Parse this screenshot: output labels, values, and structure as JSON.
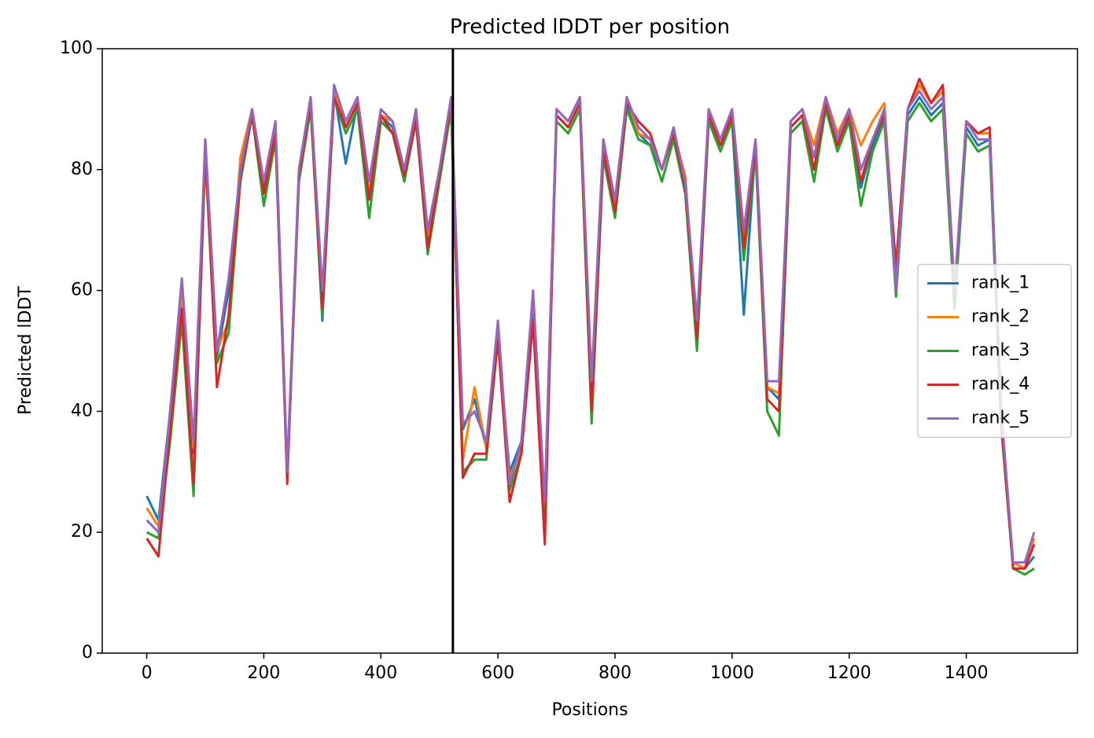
{
  "chart_data": {
    "type": "line",
    "title": "Predicted lDDT per position",
    "xlabel": "Positions",
    "ylabel": "Predicted lDDT",
    "x": [
      0,
      20,
      40,
      60,
      80,
      100,
      120,
      140,
      160,
      180,
      200,
      220,
      240,
      260,
      280,
      300,
      320,
      340,
      360,
      380,
      400,
      420,
      440,
      460,
      480,
      500,
      520,
      540,
      560,
      580,
      600,
      620,
      640,
      660,
      680,
      700,
      720,
      740,
      760,
      780,
      800,
      820,
      840,
      860,
      880,
      900,
      920,
      940,
      960,
      980,
      1000,
      1020,
      1040,
      1060,
      1080,
      1100,
      1120,
      1140,
      1160,
      1180,
      1200,
      1220,
      1240,
      1260,
      1280,
      1300,
      1320,
      1340,
      1360,
      1380,
      1400,
      1420,
      1440,
      1460,
      1480,
      1500,
      1516
    ],
    "series": [
      {
        "name": "rank_1",
        "color": "#1f77b4",
        "values": [
          26,
          22,
          40,
          60,
          33,
          84,
          49,
          60,
          80,
          89,
          77,
          87,
          30,
          79,
          91,
          55,
          93,
          81,
          91,
          78,
          89,
          87,
          80,
          89,
          68,
          79,
          90,
          37,
          42,
          34,
          52,
          30,
          35,
          58,
          24,
          89,
          87,
          91,
          44,
          84,
          74,
          91,
          86,
          84,
          80,
          86,
          77,
          54,
          89,
          84,
          88,
          56,
          84,
          44,
          42,
          87,
          89,
          80,
          91,
          84,
          89,
          77,
          84,
          89,
          61,
          89,
          92,
          89,
          91,
          58,
          87,
          84,
          85,
          38,
          15,
          14,
          16
        ]
      },
      {
        "name": "rank_2",
        "color": "#ff7f0e",
        "values": [
          24,
          21,
          38,
          60,
          34,
          85,
          50,
          55,
          82,
          90,
          78,
          87,
          30,
          80,
          92,
          58,
          93,
          87,
          91,
          76,
          89,
          88,
          80,
          90,
          69,
          80,
          91,
          32,
          44,
          34,
          53,
          29,
          34,
          58,
          23,
          90,
          88,
          92,
          44,
          85,
          74,
          92,
          86,
          85,
          80,
          86,
          79,
          52,
          90,
          85,
          89,
          68,
          85,
          44,
          43,
          88,
          90,
          84,
          92,
          86,
          90,
          84,
          88,
          91,
          62,
          90,
          94,
          91,
          93,
          58,
          88,
          86,
          86,
          39,
          15,
          14,
          19
        ]
      },
      {
        "name": "rank_3",
        "color": "#2ca02c",
        "values": [
          20,
          19,
          35,
          55,
          26,
          82,
          48,
          53,
          78,
          89,
          74,
          85,
          29,
          78,
          90,
          56,
          92,
          86,
          90,
          72,
          88,
          86,
          78,
          88,
          66,
          78,
          90,
          30,
          32,
          32,
          52,
          27,
          33,
          56,
          22,
          88,
          86,
          90,
          38,
          82,
          72,
          90,
          85,
          84,
          78,
          85,
          76,
          50,
          88,
          83,
          88,
          65,
          83,
          40,
          36,
          86,
          88,
          78,
          90,
          83,
          88,
          74,
          83,
          88,
          59,
          88,
          91,
          88,
          90,
          57,
          86,
          83,
          84,
          37,
          14,
          13,
          14
        ]
      },
      {
        "name": "rank_4",
        "color": "#d62728",
        "values": [
          19,
          16,
          37,
          57,
          28,
          83,
          44,
          56,
          79,
          89,
          76,
          86,
          28,
          79,
          91,
          57,
          92,
          87,
          91,
          75,
          89,
          86,
          79,
          88,
          67,
          79,
          91,
          29,
          33,
          33,
          52,
          25,
          33,
          55,
          18,
          89,
          87,
          91,
          40,
          83,
          73,
          91,
          88,
          86,
          80,
          86,
          77,
          52,
          89,
          84,
          89,
          67,
          84,
          42,
          40,
          87,
          89,
          80,
          91,
          84,
          89,
          78,
          85,
          89,
          64,
          90,
          95,
          91,
          94,
          60,
          88,
          86,
          87,
          38,
          14,
          14,
          18
        ]
      },
      {
        "name": "rank_5",
        "color": "#9467bd",
        "values": [
          22,
          20,
          40,
          62,
          35,
          85,
          50,
          62,
          80,
          90,
          78,
          88,
          30,
          80,
          92,
          60,
          94,
          88,
          92,
          78,
          90,
          88,
          80,
          90,
          70,
          80,
          92,
          38,
          40,
          35,
          55,
          28,
          35,
          60,
          25,
          90,
          88,
          92,
          45,
          85,
          75,
          92,
          87,
          85,
          80,
          87,
          78,
          55,
          90,
          85,
          90,
          70,
          85,
          45,
          45,
          88,
          90,
          82,
          92,
          85,
          90,
          80,
          85,
          90,
          60,
          90,
          93,
          90,
          92,
          60,
          88,
          85,
          85,
          40,
          15,
          15,
          20
        ]
      }
    ],
    "vlines": [
      523
    ],
    "vline_color": "#000000",
    "xlim": [
      -76,
      1590
    ],
    "ylim": [
      0,
      100
    ],
    "xticks": [
      0,
      200,
      400,
      600,
      800,
      1000,
      1200,
      1400
    ],
    "yticks": [
      0,
      20,
      40,
      60,
      80,
      100
    ],
    "legend": "center right"
  }
}
